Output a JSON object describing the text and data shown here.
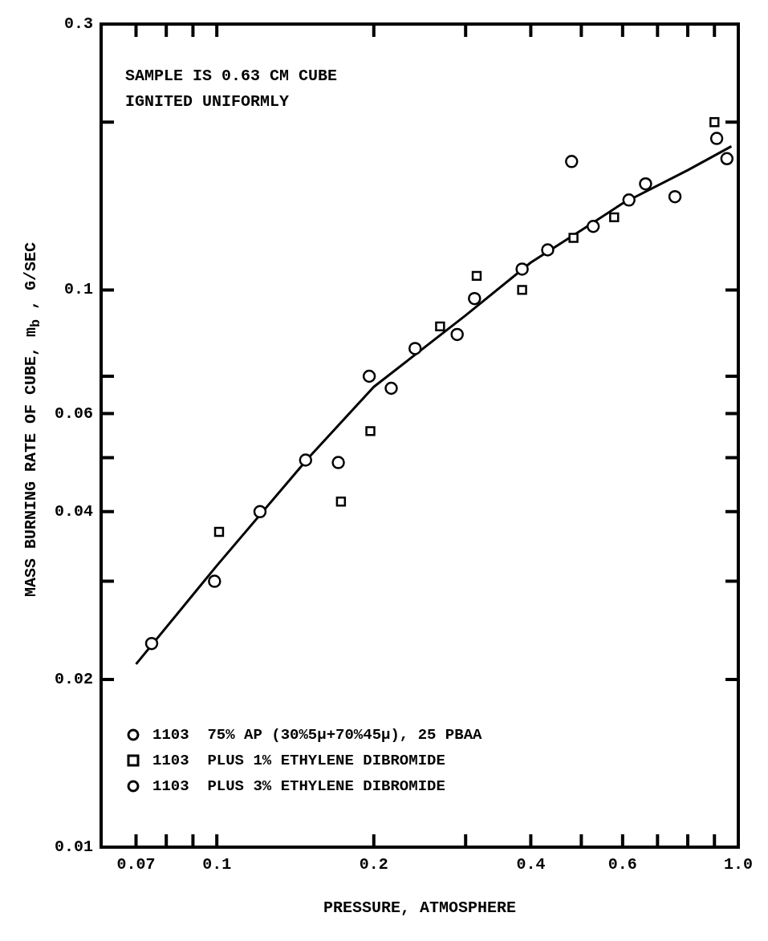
{
  "chart_data": {
    "type": "scatter",
    "xlabel": "PRESSURE, ATMOSPHERE",
    "ylabel": "MASS BURNING RATE OF CUBE, m$_{b}$ , G/SEC",
    "annotations": [
      "SAMPLE IS 0.63 CM CUBE",
      "IGNITED UNIFORMLY"
    ],
    "log": "xy",
    "xlim": [
      0.06,
      1.0
    ],
    "xticks": [
      0.07,
      {
        "value": 0.08,
        "label": null
      },
      {
        "value": 0.09,
        "label": null
      },
      0.1,
      0.2,
      {
        "value": 0.3,
        "label": null
      },
      0.4,
      {
        "value": 0.5,
        "label": null
      },
      0.6,
      {
        "value": 0.7,
        "label": null
      },
      {
        "value": 0.8,
        "label": null
      },
      {
        "value": 0.9,
        "label": null
      },
      {
        "value": 1.0,
        "label": "1.0"
      }
    ],
    "ylim": [
      0.01,
      0.3
    ],
    "yticks": [
      0.01,
      0.02,
      {
        "value": 0.03,
        "label": null
      },
      0.04,
      {
        "value": 0.05,
        "label": null
      },
      0.06,
      {
        "value": 0.07,
        "label": null
      },
      0.1,
      {
        "value": 0.2,
        "label": null
      },
      0.3
    ],
    "grid": false,
    "legend": "bottom left",
    "series": [
      {
        "name": "1103  75% AP (30%5μ+70%45μ), 25 PBAA",
        "color": "#000000",
        "marker": "circle",
        "x": [
          0.075,
          0.121,
          0.148,
          0.196,
          0.289,
          0.385,
          0.479,
          0.527,
          0.664,
          0.756,
          0.909,
          0.951
        ],
        "values": [
          0.0232,
          0.04,
          0.0495,
          0.07,
          0.0832,
          0.109,
          0.17,
          0.13,
          0.155,
          0.147,
          0.187,
          0.172
        ]
      },
      {
        "name": "1103  PLUS 1% ETHYLENE DIBROMIDE",
        "color": "#000000",
        "marker": "square",
        "x": [
          0.101,
          0.173,
          0.197,
          0.268,
          0.315,
          0.385,
          0.483,
          0.578,
          0.9
        ],
        "values": [
          0.0368,
          0.0417,
          0.0558,
          0.086,
          0.106,
          0.1,
          0.124,
          0.135,
          0.2
        ]
      },
      {
        "name": "1103  PLUS 3% ETHYLENE DIBROMIDE",
        "color": "#000000",
        "x": [
          0.099,
          0.171,
          0.216,
          0.24,
          0.312,
          0.431,
          0.617
        ],
        "values": [
          0.03,
          0.049,
          0.0666,
          0.0785,
          0.0965,
          0.118,
          0.145
        ]
      },
      {
        "type": "line",
        "color": "#000000",
        "marker": "none",
        "line_style": "solid",
        "x": [
          0.07,
          0.1,
          0.15,
          0.2,
          0.3,
          0.4,
          0.5,
          0.6,
          0.8,
          0.97
        ],
        "values": [
          0.0213,
          0.032,
          0.05,
          0.067,
          0.09,
          0.112,
          0.128,
          0.143,
          0.164,
          0.181
        ]
      }
    ]
  }
}
